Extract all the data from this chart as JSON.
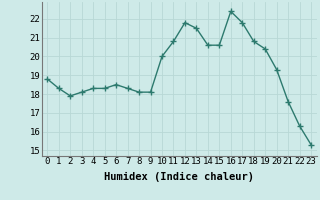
{
  "x": [
    0,
    1,
    2,
    3,
    4,
    5,
    6,
    7,
    8,
    9,
    10,
    11,
    12,
    13,
    14,
    15,
    16,
    17,
    18,
    19,
    20,
    21,
    22,
    23
  ],
  "y": [
    18.8,
    18.3,
    17.9,
    18.1,
    18.3,
    18.3,
    18.5,
    18.3,
    18.1,
    18.1,
    20.0,
    20.8,
    21.8,
    21.5,
    20.6,
    20.6,
    22.4,
    21.8,
    20.8,
    20.4,
    19.3,
    17.6,
    16.3,
    15.3
  ],
  "line_color": "#2d7a6e",
  "marker": "D",
  "marker_size": 2.2,
  "line_width": 1.0,
  "bg_color": "#ceeae8",
  "grid_color": "#b8d8d5",
  "xlabel": "Humidex (Indice chaleur)",
  "xlim": [
    -0.5,
    23.5
  ],
  "ylim": [
    14.7,
    22.9
  ],
  "yticks": [
    15,
    16,
    17,
    18,
    19,
    20,
    21,
    22
  ],
  "xticks": [
    0,
    1,
    2,
    3,
    4,
    5,
    6,
    7,
    8,
    9,
    10,
    11,
    12,
    13,
    14,
    15,
    16,
    17,
    18,
    19,
    20,
    21,
    22,
    23
  ],
  "xlabel_fontsize": 7.5,
  "tick_fontsize": 6.5
}
